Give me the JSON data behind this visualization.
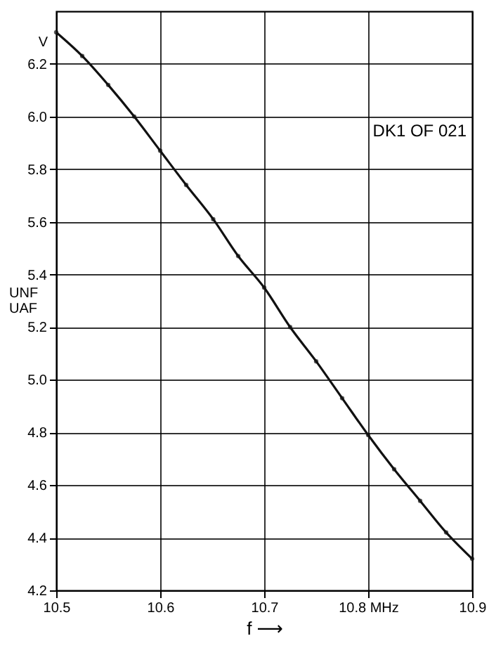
{
  "chart_data": {
    "type": "line",
    "xlabel": "f ⟶",
    "ylabel": "UNF UAF",
    "annotations": [
      "V",
      "DK1 OF 021"
    ],
    "x": [
      10.5,
      10.525,
      10.55,
      10.575,
      10.6,
      10.625,
      10.651,
      10.675,
      10.7,
      10.725,
      10.75,
      10.775,
      10.8,
      10.825,
      10.85,
      10.875,
      10.9
    ],
    "series": [
      {
        "color": "#111111",
        "values": [
          6.32,
          6.23,
          6.12,
          6.0,
          5.87,
          5.74,
          5.61,
          5.47,
          5.35,
          5.2,
          5.07,
          4.93,
          4.79,
          4.66,
          4.54,
          4.42,
          4.32
        ]
      }
    ],
    "xlim": [
      10.5,
      10.9
    ],
    "xticks": [
      10.5,
      10.6,
      10.7,
      {
        "value": 10.8,
        "label": "10.8 MHz"
      },
      10.9
    ],
    "ylim": [
      4.2,
      6.4
    ],
    "yticks": [
      4.2,
      4.4,
      4.6,
      4.8,
      {
        "value": 5,
        "label": "5.0"
      },
      5.2,
      5.4,
      5.6,
      5.8,
      {
        "value": 6,
        "label": "6.0"
      },
      6.2
    ],
    "grid": true,
    "marker": "circle",
    "line_style": "solid"
  }
}
